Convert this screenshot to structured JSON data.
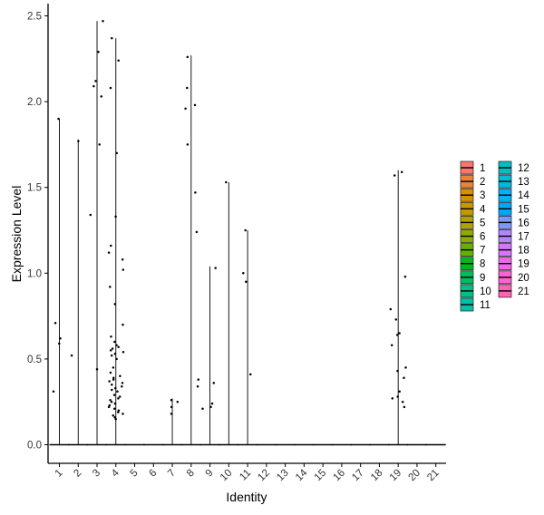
{
  "chart_data": {
    "type": "violin",
    "xlabel": "Identity",
    "ylabel": "Expression Level",
    "categories": [
      "1",
      "2",
      "3",
      "4",
      "5",
      "6",
      "7",
      "8",
      "9",
      "10",
      "11",
      "12",
      "13",
      "14",
      "15",
      "16",
      "17",
      "18",
      "19",
      "20",
      "21"
    ],
    "yticks": [
      0.0,
      0.5,
      1.0,
      1.5,
      2.0,
      2.5
    ],
    "ytick_labels": [
      "0.0",
      "0.5",
      "1.0",
      "1.5",
      "2.0",
      "2.5"
    ],
    "ylim": [
      -0.12,
      2.58
    ],
    "grid": false,
    "legend_position": "right",
    "legend_columns": 2,
    "violin_max": [
      1.9,
      1.78,
      2.47,
      2.37,
      0,
      0,
      0.27,
      2.27,
      1.04,
      1.53,
      1.25,
      0,
      0,
      0,
      0,
      0,
      0,
      0,
      1.6,
      0,
      0
    ],
    "points": [
      {
        "cluster": "1",
        "values": [
          0.59,
          0.62,
          0.31,
          0.71,
          1.9
        ]
      },
      {
        "cluster": "2",
        "values": [
          1.77,
          0.52
        ]
      },
      {
        "cluster": "3",
        "values": [
          2.47,
          2.29,
          2.12,
          2.09,
          2.03,
          1.75,
          1.34,
          0.44
        ]
      },
      {
        "cluster": "4",
        "values": [
          2.37,
          2.24,
          2.08,
          1.7,
          1.33,
          1.16,
          1.12,
          1.08,
          1.02,
          0.92,
          0.82,
          0.7,
          0.63,
          0.6,
          0.58,
          0.57,
          0.56,
          0.55,
          0.54,
          0.53,
          0.52,
          0.5,
          0.45,
          0.42,
          0.4,
          0.39,
          0.38,
          0.37,
          0.36,
          0.35,
          0.34,
          0.33,
          0.32,
          0.31,
          0.29,
          0.28,
          0.27,
          0.26,
          0.25,
          0.24,
          0.23,
          0.22,
          0.21,
          0.2,
          0.19,
          0.18,
          0.17,
          0.16,
          0.15
        ]
      },
      {
        "cluster": "7",
        "values": [
          0.26,
          0.25,
          0.22,
          0.18
        ]
      },
      {
        "cluster": "8",
        "values": [
          2.26,
          2.08,
          1.98,
          1.96,
          1.75,
          1.47,
          1.24,
          0.38,
          0.34
        ]
      },
      {
        "cluster": "9",
        "values": [
          1.03,
          0.36,
          0.24,
          0.22,
          0.21
        ]
      },
      {
        "cluster": "10",
        "values": [
          1.53
        ]
      },
      {
        "cluster": "11",
        "values": [
          1.25,
          1.0,
          0.95,
          0.41
        ]
      },
      {
        "cluster": "19",
        "values": [
          1.59,
          1.57,
          0.98,
          0.79,
          0.73,
          0.65,
          0.64,
          0.58,
          0.45,
          0.43,
          0.39,
          0.31,
          0.28,
          0.27,
          0.25,
          0.22
        ]
      }
    ],
    "series": [
      {
        "name": "1",
        "color": "#F8766D"
      },
      {
        "name": "2",
        "color": "#EC8239"
      },
      {
        "name": "3",
        "color": "#DB8E00"
      },
      {
        "name": "4",
        "color": "#C79800"
      },
      {
        "name": "5",
        "color": "#AEA200"
      },
      {
        "name": "6",
        "color": "#8FAA00"
      },
      {
        "name": "7",
        "color": "#64B200"
      },
      {
        "name": "8",
        "color": "#00B81B"
      },
      {
        "name": "9",
        "color": "#00BD5C"
      },
      {
        "name": "10",
        "color": "#00C085"
      },
      {
        "name": "11",
        "color": "#00C1A7"
      },
      {
        "name": "12",
        "color": "#00BFC4"
      },
      {
        "name": "13",
        "color": "#00BADE"
      },
      {
        "name": "14",
        "color": "#00B2F3"
      },
      {
        "name": "15",
        "color": "#00A6FF"
      },
      {
        "name": "16",
        "color": "#7C96FF"
      },
      {
        "name": "17",
        "color": "#B385FF"
      },
      {
        "name": "18",
        "color": "#D874FD"
      },
      {
        "name": "19",
        "color": "#EF67EB"
      },
      {
        "name": "20",
        "color": "#FD61D3"
      },
      {
        "name": "21",
        "color": "#FF63B6"
      }
    ]
  }
}
